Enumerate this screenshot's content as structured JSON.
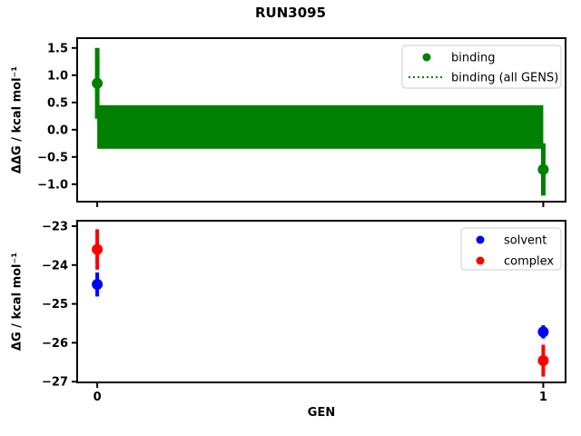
{
  "figure": {
    "title": "RUN3095",
    "background": "#ffffff"
  },
  "colors": {
    "binding": "#008000",
    "solvent": "#0000ff",
    "complex": "#ff0000",
    "axes": "#000000",
    "legend_border": "#cccccc"
  },
  "chart_data": [
    {
      "type": "scatter",
      "name": "ddg-subplot",
      "ylabel": "ΔΔG / kcal mol⁻¹",
      "xlabel": "",
      "xlim": [
        -0.045,
        1.05
      ],
      "ylim": [
        -1.32,
        1.68
      ],
      "xticks": [
        0,
        1
      ],
      "xticklabels": [],
      "yticks": [
        1.5,
        1.0,
        0.5,
        0.0,
        -0.5,
        -1.0
      ],
      "yticklabels": [
        "1.5",
        "1.0",
        "0.5",
        "0.0",
        "−0.5",
        "−1.0"
      ],
      "grid": false,
      "series": [
        {
          "name": "binding",
          "color": "#008000",
          "marker": "circle",
          "x": [
            0,
            1
          ],
          "y": [
            0.85,
            -0.73
          ],
          "yerr": [
            0.65,
            0.48
          ]
        }
      ],
      "band": {
        "name": "binding (all GENS)",
        "color": "#008000",
        "x": [
          0,
          1
        ],
        "lo": -0.35,
        "hi": 0.45,
        "center": 0.05,
        "line_style": "dotted"
      },
      "legend": {
        "position": "upper-right",
        "entries": [
          {
            "label": "binding",
            "glyph": "marker",
            "color": "#008000"
          },
          {
            "label": "binding (all GENS)",
            "glyph": "dotted-line",
            "color": "#008000"
          }
        ]
      }
    },
    {
      "type": "scatter",
      "name": "dg-subplot",
      "ylabel": "ΔG / kcal mol⁻¹",
      "xlabel": "GEN",
      "xlim": [
        -0.045,
        1.05
      ],
      "ylim": [
        -27.02,
        -22.86
      ],
      "xticks": [
        0,
        1
      ],
      "xticklabels": [
        "0",
        "1"
      ],
      "yticks": [
        -23,
        -24,
        -25,
        -26,
        -27
      ],
      "yticklabels": [
        "−23",
        "−24",
        "−25",
        "−26",
        "−27"
      ],
      "grid": false,
      "series": [
        {
          "name": "solvent",
          "color": "#0000ff",
          "marker": "circle",
          "x": [
            0,
            1
          ],
          "y": [
            -24.5,
            -25.72
          ],
          "yerr": [
            0.31,
            0.17
          ]
        },
        {
          "name": "complex",
          "color": "#ff0000",
          "marker": "circle",
          "x": [
            0,
            1
          ],
          "y": [
            -23.6,
            -26.46
          ],
          "yerr": [
            0.52,
            0.41
          ]
        }
      ],
      "legend": {
        "position": "upper-right",
        "entries": [
          {
            "label": "solvent",
            "glyph": "marker",
            "color": "#0000ff"
          },
          {
            "label": "complex",
            "glyph": "marker",
            "color": "#ff0000"
          }
        ]
      }
    }
  ]
}
